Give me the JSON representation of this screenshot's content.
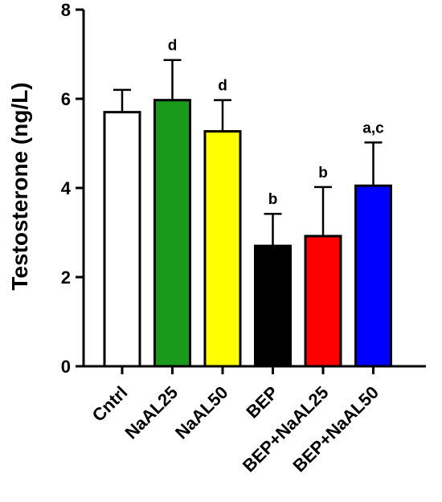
{
  "chart_data": {
    "type": "bar",
    "title": "",
    "xlabel": "",
    "ylabel": "Testosterone (ng/L)",
    "ylim": [
      0,
      8
    ],
    "yticks": [
      0,
      2,
      4,
      6,
      8
    ],
    "grid": false,
    "categories": [
      "Cntrl",
      "NaAL25",
      "NaAL50",
      "BEP",
      "BEP+NaAL25",
      "BEP+NaAL50"
    ],
    "values": [
      5.7,
      5.97,
      5.27,
      2.7,
      2.92,
      4.05
    ],
    "error_bars": [
      0.5,
      0.9,
      0.7,
      0.72,
      1.1,
      0.97
    ],
    "annotations": [
      "",
      "d",
      "d",
      "b",
      "b",
      "a,c"
    ],
    "colors": [
      "#ffffff",
      "#1a9a1a",
      "#ffff00",
      "#000000",
      "#ff0000",
      "#0000ff"
    ]
  }
}
